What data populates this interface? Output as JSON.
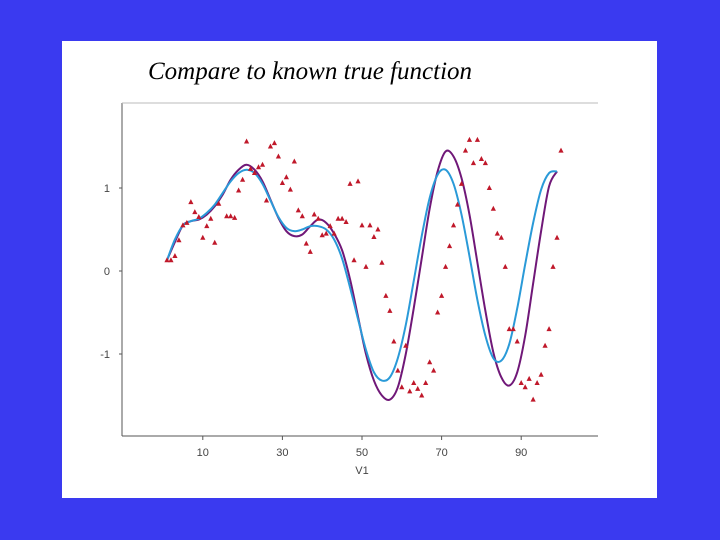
{
  "slide": {
    "title": "Compare to known true function",
    "background_color": "#3a3af0",
    "panel_color": "#ffffff"
  },
  "chart_data": {
    "type": "scatter",
    "title": "Compare to known true function",
    "xlabel": "V1",
    "ylabel": "",
    "xlim": [
      0,
      100
    ],
    "ylim": [
      -2,
      2
    ],
    "x_ticks": [
      10,
      30,
      50,
      70,
      90
    ],
    "y_ticks": [
      -1,
      0,
      1
    ],
    "x_tick_labels": [
      "10",
      "30",
      "50",
      "70",
      "90"
    ],
    "y_tick_labels": [
      "-1",
      "0",
      "1"
    ],
    "grid": false,
    "series": [
      {
        "kind": "points",
        "color": "#c0182a",
        "marker": "triangle",
        "points": [
          [
            1,
            0.13
          ],
          [
            2,
            0.13
          ],
          [
            3,
            0.18
          ],
          [
            4,
            0.37
          ],
          [
            5,
            0.55
          ],
          [
            6,
            0.58
          ],
          [
            7,
            0.83
          ],
          [
            8,
            0.71
          ],
          [
            9,
            0.65
          ],
          [
            10,
            0.4
          ],
          [
            11,
            0.54
          ],
          [
            12,
            0.63
          ],
          [
            13,
            0.34
          ],
          [
            14,
            0.81
          ],
          [
            16,
            0.66
          ],
          [
            17,
            0.66
          ],
          [
            18,
            0.64
          ],
          [
            19,
            0.97
          ],
          [
            20,
            1.1
          ],
          [
            21,
            1.56
          ],
          [
            22,
            1.23
          ],
          [
            23,
            1.18
          ],
          [
            24,
            1.25
          ],
          [
            25,
            1.28
          ],
          [
            26,
            0.85
          ],
          [
            27,
            1.5
          ],
          [
            28,
            1.54
          ],
          [
            29,
            1.38
          ],
          [
            30,
            1.06
          ],
          [
            31,
            1.13
          ],
          [
            32,
            0.98
          ],
          [
            33,
            1.32
          ],
          [
            34,
            0.73
          ],
          [
            35,
            0.66
          ],
          [
            36,
            0.33
          ],
          [
            37,
            0.23
          ],
          [
            38,
            0.68
          ],
          [
            39,
            0.63
          ],
          [
            40,
            0.43
          ],
          [
            41,
            0.45
          ],
          [
            42,
            0.54
          ],
          [
            43,
            0.45
          ],
          [
            44,
            0.63
          ],
          [
            45,
            0.63
          ],
          [
            46,
            0.59
          ],
          [
            47,
            1.05
          ],
          [
            48,
            0.13
          ],
          [
            49,
            1.08
          ],
          [
            50,
            0.55
          ],
          [
            51,
            0.05
          ],
          [
            52,
            0.55
          ],
          [
            53,
            0.41
          ],
          [
            54,
            0.5
          ],
          [
            55,
            0.1
          ],
          [
            56,
            -0.3
          ],
          [
            57,
            -0.48
          ],
          [
            58,
            -0.85
          ],
          [
            59,
            -1.2
          ],
          [
            60,
            -1.4
          ],
          [
            61,
            -0.9
          ],
          [
            62,
            -1.45
          ],
          [
            63,
            -1.35
          ],
          [
            64,
            -1.42
          ],
          [
            65,
            -1.5
          ],
          [
            66,
            -1.35
          ],
          [
            67,
            -1.1
          ],
          [
            68,
            -1.2
          ],
          [
            69,
            -0.5
          ],
          [
            70,
            -0.3
          ],
          [
            71,
            0.05
          ],
          [
            72,
            0.3
          ],
          [
            73,
            0.55
          ],
          [
            74,
            0.8
          ],
          [
            75,
            1.05
          ],
          [
            76,
            1.45
          ],
          [
            77,
            1.58
          ],
          [
            78,
            1.3
          ],
          [
            79,
            1.58
          ],
          [
            80,
            1.35
          ],
          [
            81,
            1.3
          ],
          [
            82,
            1.0
          ],
          [
            83,
            0.75
          ],
          [
            84,
            0.45
          ],
          [
            85,
            0.4
          ],
          [
            86,
            0.05
          ],
          [
            87,
            -0.7
          ],
          [
            88,
            -0.7
          ],
          [
            89,
            -0.85
          ],
          [
            90,
            -1.35
          ],
          [
            91,
            -1.4
          ],
          [
            92,
            -1.3
          ],
          [
            93,
            -1.55
          ],
          [
            94,
            -1.35
          ],
          [
            95,
            -1.25
          ],
          [
            96,
            -0.9
          ],
          [
            97,
            -0.7
          ],
          [
            98,
            0.05
          ],
          [
            99,
            0.4
          ],
          [
            100,
            1.45
          ]
        ]
      },
      {
        "kind": "line",
        "color": "#701878",
        "width": 2,
        "points": [
          [
            1,
            0.13
          ],
          [
            3,
            0.35
          ],
          [
            5,
            0.55
          ],
          [
            7,
            0.6
          ],
          [
            9,
            0.62
          ],
          [
            11,
            0.68
          ],
          [
            13,
            0.78
          ],
          [
            15,
            0.92
          ],
          [
            17,
            1.1
          ],
          [
            19,
            1.22
          ],
          [
            21,
            1.28
          ],
          [
            23,
            1.22
          ],
          [
            25,
            1.08
          ],
          [
            27,
            0.86
          ],
          [
            29,
            0.64
          ],
          [
            31,
            0.48
          ],
          [
            33,
            0.42
          ],
          [
            35,
            0.44
          ],
          [
            37,
            0.54
          ],
          [
            39,
            0.62
          ],
          [
            41,
            0.58
          ],
          [
            43,
            0.45
          ],
          [
            45,
            0.25
          ],
          [
            47,
            -0.1
          ],
          [
            49,
            -0.55
          ],
          [
            51,
            -1.0
          ],
          [
            53,
            -1.32
          ],
          [
            55,
            -1.5
          ],
          [
            57,
            -1.55
          ],
          [
            59,
            -1.4
          ],
          [
            61,
            -1.0
          ],
          [
            63,
            -0.45
          ],
          [
            65,
            0.15
          ],
          [
            67,
            0.75
          ],
          [
            69,
            1.2
          ],
          [
            71,
            1.44
          ],
          [
            73,
            1.38
          ],
          [
            75,
            1.12
          ],
          [
            77,
            0.68
          ],
          [
            79,
            0.1
          ],
          [
            81,
            -0.48
          ],
          [
            83,
            -0.98
          ],
          [
            85,
            -1.28
          ],
          [
            87,
            -1.38
          ],
          [
            89,
            -1.22
          ],
          [
            91,
            -0.78
          ],
          [
            93,
            -0.15
          ],
          [
            95,
            0.48
          ],
          [
            97,
            1.02
          ],
          [
            99,
            1.2
          ]
        ]
      },
      {
        "kind": "line",
        "color": "#2a9ad8",
        "width": 2,
        "points": [
          [
            1,
            0.13
          ],
          [
            3,
            0.38
          ],
          [
            5,
            0.55
          ],
          [
            7,
            0.6
          ],
          [
            9,
            0.63
          ],
          [
            11,
            0.7
          ],
          [
            13,
            0.8
          ],
          [
            15,
            0.94
          ],
          [
            17,
            1.08
          ],
          [
            19,
            1.18
          ],
          [
            21,
            1.22
          ],
          [
            23,
            1.18
          ],
          [
            25,
            1.05
          ],
          [
            27,
            0.85
          ],
          [
            29,
            0.65
          ],
          [
            31,
            0.52
          ],
          [
            33,
            0.48
          ],
          [
            35,
            0.5
          ],
          [
            37,
            0.54
          ],
          [
            39,
            0.54
          ],
          [
            41,
            0.5
          ],
          [
            43,
            0.38
          ],
          [
            45,
            0.15
          ],
          [
            47,
            -0.2
          ],
          [
            49,
            -0.58
          ],
          [
            51,
            -0.95
          ],
          [
            53,
            -1.22
          ],
          [
            55,
            -1.32
          ],
          [
            57,
            -1.28
          ],
          [
            59,
            -1.05
          ],
          [
            61,
            -0.65
          ],
          [
            63,
            -0.12
          ],
          [
            65,
            0.42
          ],
          [
            67,
            0.88
          ],
          [
            69,
            1.16
          ],
          [
            71,
            1.22
          ],
          [
            73,
            1.05
          ],
          [
            75,
            0.68
          ],
          [
            77,
            0.18
          ],
          [
            79,
            -0.35
          ],
          [
            81,
            -0.78
          ],
          [
            83,
            -1.05
          ],
          [
            85,
            -1.08
          ],
          [
            87,
            -0.88
          ],
          [
            89,
            -0.45
          ],
          [
            91,
            0.08
          ],
          [
            93,
            0.58
          ],
          [
            95,
            0.98
          ],
          [
            97,
            1.18
          ],
          [
            99,
            1.2
          ]
        ]
      }
    ]
  }
}
